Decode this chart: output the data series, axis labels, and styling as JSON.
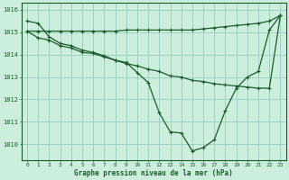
{
  "title": "Graphe pression niveau de la mer (hPa)",
  "bg_color": "#cceedd",
  "grid_color": "#99ccbb",
  "line_color": "#1a5c2a",
  "xlim": [
    -0.5,
    23.5
  ],
  "ylim": [
    1009.3,
    1016.3
  ],
  "yticks": [
    1010,
    1011,
    1012,
    1013,
    1014,
    1015,
    1016
  ],
  "xtick_labels": [
    "0",
    "1",
    "2",
    "3",
    "4",
    "5",
    "6",
    "7",
    "8",
    "9",
    "10",
    "11",
    "12",
    "13",
    "14",
    "15",
    "16",
    "17",
    "18",
    "19",
    "20",
    "21",
    "22",
    "23"
  ],
  "series1": [
    1015.5,
    1015.4,
    1014.8,
    1014.5,
    1014.4,
    1014.2,
    1014.1,
    1013.95,
    1013.75,
    1013.65,
    1013.2,
    1012.75,
    1011.4,
    1010.55,
    1010.5,
    1009.7,
    1009.85,
    1010.2,
    1011.5,
    1012.5,
    1013.0,
    1013.25,
    1015.1,
    1015.75
  ],
  "series2": [
    1015.05,
    1014.75,
    1014.65,
    1014.4,
    1014.3,
    1014.1,
    1014.05,
    1013.9,
    1013.75,
    1013.6,
    1013.5,
    1013.35,
    1013.25,
    1013.05,
    1013.0,
    1012.85,
    1012.8,
    1012.7,
    1012.65,
    1012.6,
    1012.55,
    1012.5,
    1012.5,
    1015.75
  ],
  "series3": [
    1015.05,
    1015.05,
    1015.05,
    1015.05,
    1015.05,
    1015.05,
    1015.05,
    1015.05,
    1015.05,
    1015.1,
    1015.1,
    1015.1,
    1015.1,
    1015.1,
    1015.1,
    1015.1,
    1015.15,
    1015.2,
    1015.25,
    1015.3,
    1015.35,
    1015.4,
    1015.5,
    1015.75
  ]
}
